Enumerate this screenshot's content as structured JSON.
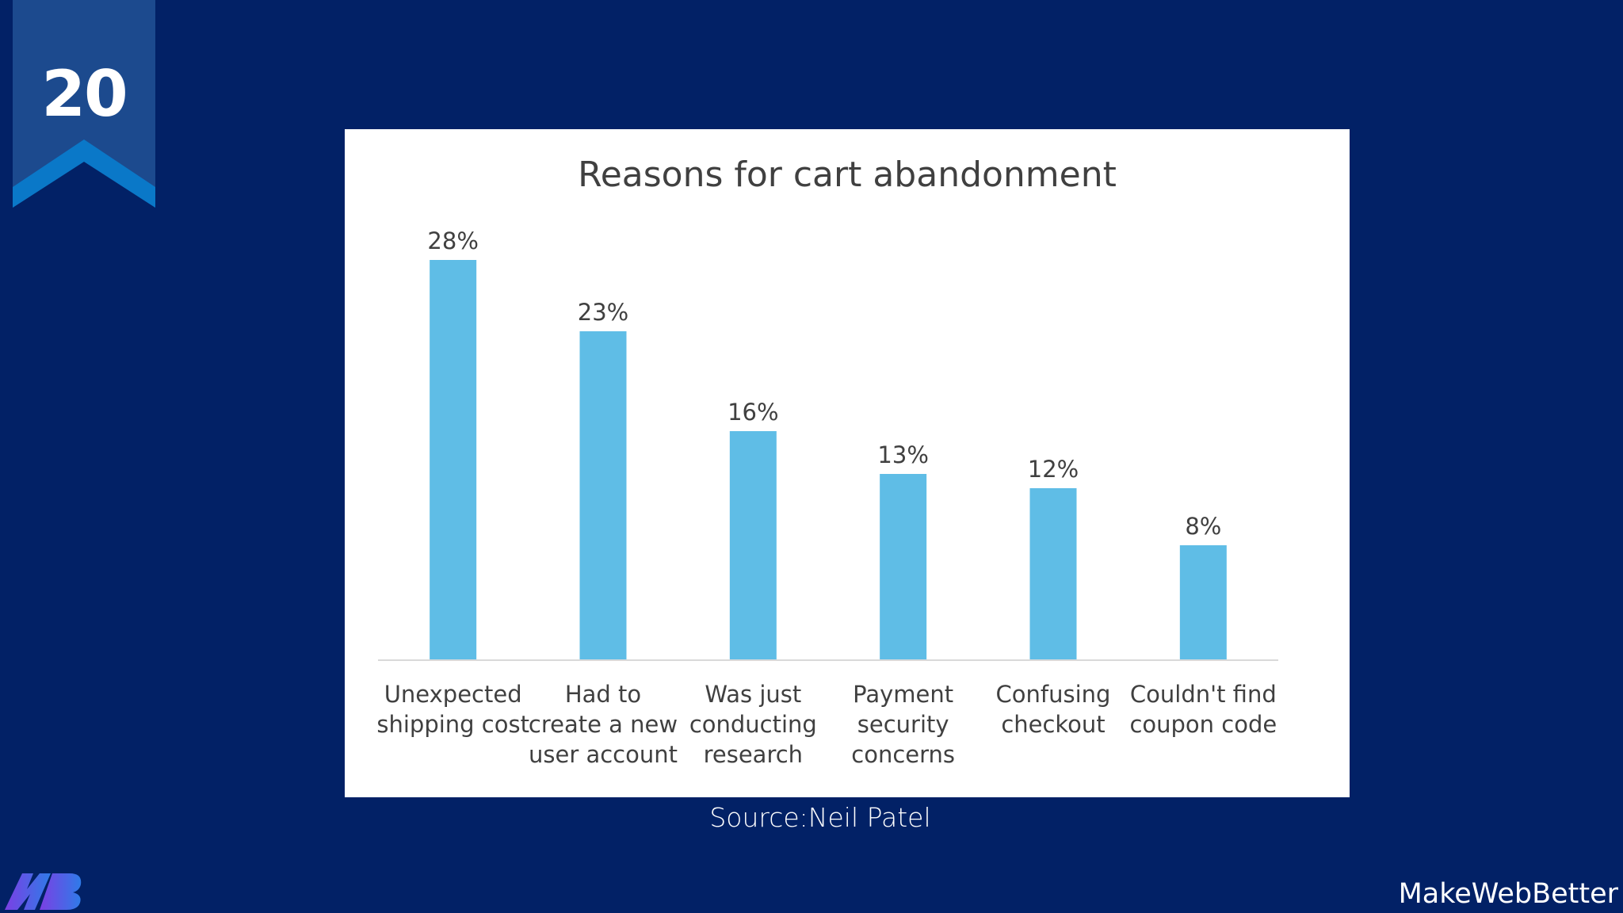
{
  "slide": {
    "number": "20",
    "source": "Source:Neil Patel",
    "brand": "MakeWebBetter"
  },
  "icons": {
    "badge": "ribbon-bookmark-icon",
    "logo": "makewebbetter-logo-icon"
  },
  "colors": {
    "background": "#022166",
    "badge": "#1c4a8e",
    "chevron": "#0a78c8",
    "bar": "#5fbde6",
    "card": "#ffffff",
    "axis": "#d9d9d9",
    "text_dark": "#404040"
  },
  "chart_data": {
    "type": "bar",
    "title": "Reasons for cart abandonment",
    "xlabel": "",
    "ylabel": "",
    "ylim": [
      0,
      28
    ],
    "grid": false,
    "categories": [
      [
        "Unexpected",
        "shipping cost"
      ],
      [
        "Had to",
        "create a new",
        "user account"
      ],
      [
        "Was just",
        "conducting",
        "research"
      ],
      [
        "Payment",
        "security",
        "concerns"
      ],
      [
        "Confusing",
        "checkout"
      ],
      [
        "Couldn't find",
        "coupon code"
      ]
    ],
    "values": [
      28,
      23,
      16,
      13,
      12,
      8
    ],
    "data_labels": [
      "28%",
      "23%",
      "16%",
      "13%",
      "12%",
      "8%"
    ]
  }
}
